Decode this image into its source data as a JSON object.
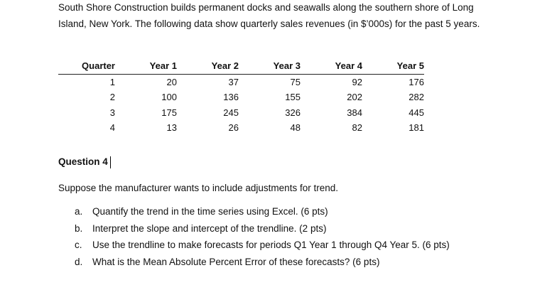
{
  "intro": "South Shore Construction builds permanent docks and seawalls along the southern shore of Long Island, New York.  The following data show quarterly sales revenues (in $’000s) for the past 5 years.",
  "table": {
    "header": [
      "Quarter",
      "Year 1",
      "Year 2",
      "Year 3",
      "Year 4",
      "Year 5"
    ],
    "rows": [
      [
        1,
        20,
        37,
        75,
        92,
        176
      ],
      [
        2,
        100,
        136,
        155,
        202,
        282
      ],
      [
        3,
        175,
        245,
        326,
        384,
        445
      ],
      [
        4,
        13,
        26,
        48,
        82,
        181
      ]
    ]
  },
  "question": {
    "title": "Question 4",
    "prompt": "Suppose the manufacturer wants to include adjustments for trend.",
    "items": [
      {
        "letter": "a.",
        "text": "Quantify the trend in the time series using Excel. (6 pts)"
      },
      {
        "letter": "b.",
        "text": "Interpret the slope and intercept of the trendline. (2 pts)"
      },
      {
        "letter": "c.",
        "text": "Use the trendline to make forecasts for periods Q1 Year 1 through Q4 Year 5. (6 pts)"
      },
      {
        "letter": "d.",
        "text": "What is the Mean Absolute Percent Error of these forecasts? (6 pts)"
      }
    ]
  }
}
